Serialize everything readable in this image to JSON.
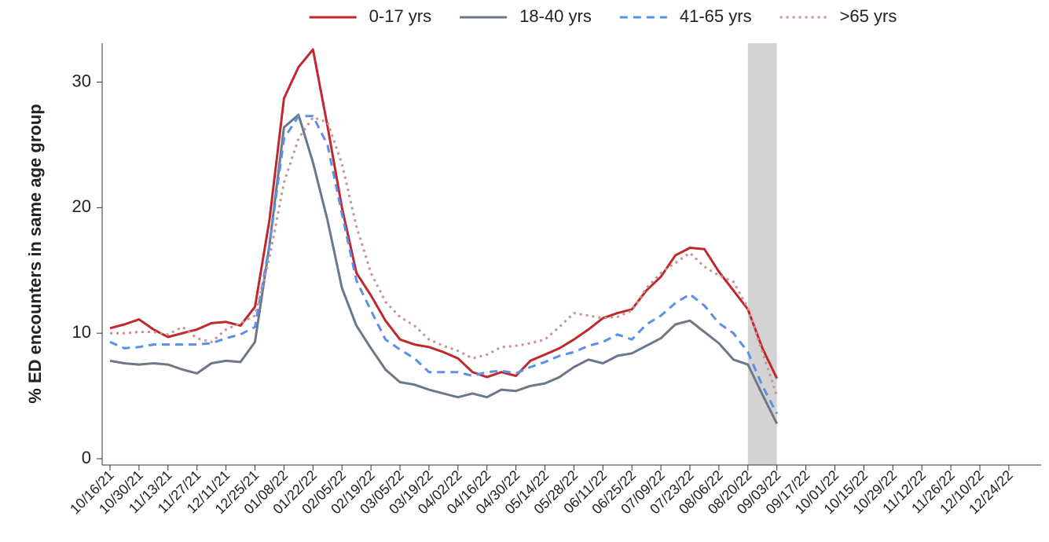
{
  "chart_data": {
    "type": "line",
    "y_label": "% ED encounters in same age group",
    "categories": [
      "10/16/21",
      null,
      "10/30/21",
      null,
      "11/13/21",
      null,
      "11/27/21",
      null,
      "12/11/21",
      null,
      "12/25/21",
      null,
      "01/08/22",
      null,
      "01/22/22",
      null,
      "02/05/22",
      null,
      "02/19/22",
      null,
      "03/05/22",
      null,
      "03/19/22",
      null,
      "04/02/22",
      null,
      "04/16/22",
      null,
      "04/30/22",
      null,
      "05/14/22",
      null,
      "05/28/22",
      null,
      "06/11/22",
      null,
      "06/25/22",
      null,
      "07/09/22",
      null,
      "07/23/22",
      null,
      "08/06/22",
      null,
      "08/20/22",
      null,
      "09/03/22",
      null,
      "09/17/22",
      null,
      "10/01/22",
      null,
      "10/15/22",
      null,
      "10/29/22",
      null,
      "11/12/22",
      null,
      "11/26/22",
      null,
      "12/10/22",
      null,
      "12/24/22",
      null
    ],
    "series": [
      {
        "name": "0-17 yrs",
        "color": "#c0282d",
        "style": "solid",
        "values": [
          10.4,
          10.7,
          11.1,
          10.3,
          9.7,
          10.0,
          10.3,
          10.8,
          10.9,
          10.6,
          12.1,
          19.0,
          28.7,
          31.2,
          32.6,
          26.5,
          20.0,
          14.8,
          13.0,
          11.0,
          9.5,
          9.1,
          8.9,
          8.5,
          8.0,
          6.9,
          6.5,
          6.9,
          6.6,
          7.8,
          8.3,
          8.8,
          9.5,
          10.3,
          11.2,
          11.6,
          11.9,
          13.4,
          14.5,
          16.2,
          16.8,
          16.7,
          14.9,
          13.4,
          11.9,
          8.8,
          6.4,
          null,
          null,
          null,
          null,
          null,
          null,
          null,
          null,
          null,
          null,
          null,
          null,
          null,
          null,
          null,
          null,
          null
        ]
      },
      {
        "name": "18-40 yrs",
        "color": "#6b7888",
        "style": "solid",
        "values": [
          7.8,
          7.6,
          7.5,
          7.6,
          7.5,
          7.1,
          6.8,
          7.6,
          7.8,
          7.7,
          9.3,
          17.0,
          26.4,
          27.4,
          23.6,
          19.0,
          13.6,
          10.6,
          8.8,
          7.1,
          6.1,
          5.9,
          5.5,
          5.2,
          4.9,
          5.2,
          4.9,
          5.5,
          5.4,
          5.8,
          6.0,
          6.5,
          7.3,
          7.9,
          7.6,
          8.2,
          8.4,
          9.0,
          9.6,
          10.7,
          11.0,
          10.1,
          9.2,
          7.9,
          7.5,
          5.1,
          2.8,
          null,
          null,
          null,
          null,
          null,
          null,
          null,
          null,
          null,
          null,
          null,
          null,
          null,
          null,
          null,
          null,
          null
        ]
      },
      {
        "name": "41-65 yrs",
        "color": "#5b8fe8",
        "style": "dashed",
        "values": [
          9.3,
          8.8,
          8.9,
          9.1,
          9.1,
          9.1,
          9.1,
          9.2,
          9.6,
          9.9,
          10.5,
          17.0,
          25.5,
          27.3,
          27.3,
          25.0,
          19.5,
          14.2,
          11.8,
          9.5,
          8.7,
          8.0,
          6.9,
          6.9,
          6.9,
          6.6,
          6.9,
          7.0,
          6.8,
          7.3,
          7.7,
          8.2,
          8.5,
          9.0,
          9.3,
          9.9,
          9.5,
          10.7,
          11.4,
          12.4,
          13.1,
          12.2,
          10.8,
          10.0,
          8.5,
          5.8,
          3.6,
          null,
          null,
          null,
          null,
          null,
          null,
          null,
          null,
          null,
          null,
          null,
          null,
          null,
          null,
          null,
          null,
          null
        ]
      },
      {
        "name": ">65 yrs",
        "color": "#c99393",
        "style": "dotted",
        "values": [
          10.0,
          10.0,
          10.1,
          10.1,
          9.9,
          10.5,
          9.6,
          9.3,
          10.3,
          10.8,
          11.4,
          16.0,
          22.0,
          25.5,
          27.2,
          26.8,
          23.5,
          18.5,
          14.8,
          12.5,
          11.3,
          10.6,
          9.5,
          9.0,
          8.6,
          8.0,
          8.3,
          8.9,
          9.0,
          9.2,
          9.5,
          10.5,
          11.6,
          11.4,
          11.2,
          11.3,
          11.8,
          13.6,
          14.8,
          15.6,
          16.4,
          15.3,
          14.6,
          14.1,
          12.0,
          8.5,
          5.0,
          null,
          null,
          null,
          null,
          null,
          null,
          null,
          null,
          null,
          null,
          null,
          null,
          null,
          null,
          null,
          null,
          null
        ]
      }
    ],
    "highlight": {
      "from": "08/20/22",
      "to": "09/03/22",
      "color": "#d3d3d3"
    },
    "ylim": [
      -0.5,
      33.1
    ],
    "yticks": [
      0,
      10,
      20,
      30
    ],
    "grid": false,
    "legend": "top"
  }
}
